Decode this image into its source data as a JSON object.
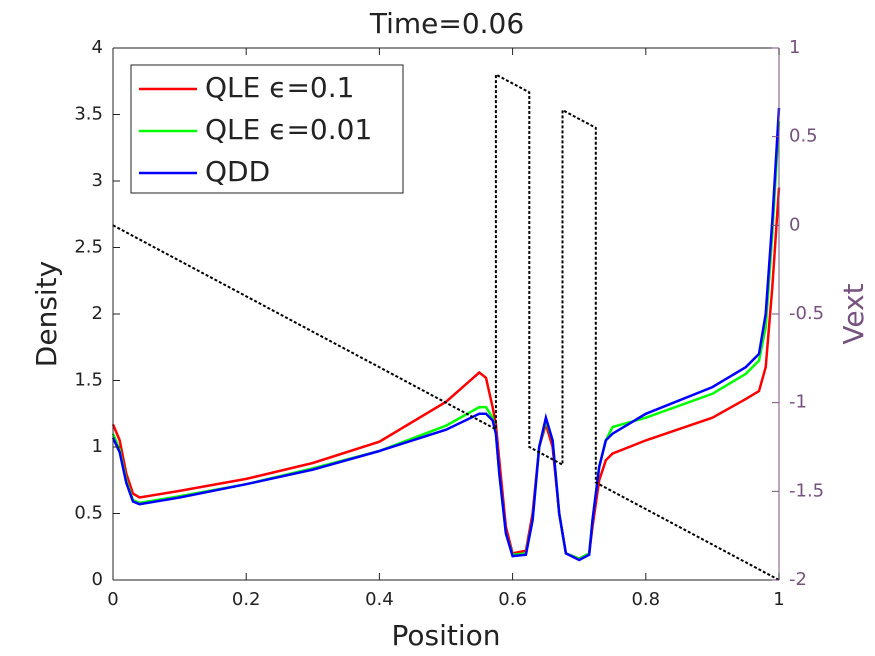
{
  "chart_data": {
    "type": "line",
    "title": "Time=0.06",
    "xlabel": "Position",
    "ylabel": "Density",
    "y2label": "Vext",
    "xlim": [
      0,
      1
    ],
    "xticks": [
      0,
      0.2,
      0.4,
      0.6,
      0.8,
      1
    ],
    "ylim": [
      0,
      4
    ],
    "yticks": [
      0,
      0.5,
      1,
      1.5,
      2,
      2.5,
      3,
      3.5,
      4
    ],
    "y2lim": [
      -2,
      1
    ],
    "y2ticks": [
      -2,
      -1.5,
      -1,
      -0.5,
      0,
      0.5,
      1
    ],
    "y2color": "#77517f",
    "legend": "northwest",
    "series": [
      {
        "name": "QLE ϵ=0.1",
        "color": "#ff0000",
        "x": [
          0,
          0.01,
          0.02,
          0.03,
          0.04,
          0.1,
          0.2,
          0.3,
          0.4,
          0.5,
          0.55,
          0.56,
          0.57,
          0.575,
          0.58,
          0.59,
          0.6,
          0.62,
          0.63,
          0.64,
          0.65,
          0.66,
          0.67,
          0.68,
          0.7,
          0.715,
          0.72,
          0.73,
          0.74,
          0.75,
          0.8,
          0.9,
          0.95,
          0.97,
          0.98,
          0.99,
          1
        ],
        "values": [
          1.17,
          1.05,
          0.8,
          0.65,
          0.62,
          0.67,
          0.76,
          0.88,
          1.04,
          1.34,
          1.56,
          1.52,
          1.3,
          1.17,
          0.9,
          0.4,
          0.2,
          0.22,
          0.5,
          1.0,
          1.17,
          1.0,
          0.5,
          0.2,
          0.16,
          0.2,
          0.4,
          0.75,
          0.9,
          0.95,
          1.05,
          1.22,
          1.36,
          1.42,
          1.6,
          2.2,
          2.95
        ]
      },
      {
        "name": "QLE ϵ=0.01",
        "color": "#00ff00",
        "x": [
          0,
          0.01,
          0.02,
          0.03,
          0.04,
          0.1,
          0.2,
          0.3,
          0.4,
          0.5,
          0.55,
          0.56,
          0.57,
          0.575,
          0.58,
          0.59,
          0.6,
          0.62,
          0.63,
          0.64,
          0.65,
          0.66,
          0.67,
          0.68,
          0.7,
          0.715,
          0.72,
          0.73,
          0.74,
          0.75,
          0.8,
          0.9,
          0.95,
          0.97,
          0.98,
          0.99,
          1
        ],
        "values": [
          1.1,
          0.98,
          0.75,
          0.6,
          0.58,
          0.63,
          0.72,
          0.84,
          0.97,
          1.16,
          1.3,
          1.3,
          1.22,
          1.1,
          0.8,
          0.35,
          0.19,
          0.2,
          0.45,
          1.0,
          1.2,
          1.05,
          0.5,
          0.2,
          0.16,
          0.2,
          0.45,
          0.85,
          1.05,
          1.15,
          1.22,
          1.4,
          1.55,
          1.65,
          1.9,
          2.6,
          3.45
        ]
      },
      {
        "name": "QDD",
        "color": "#0000ff",
        "x": [
          0,
          0.01,
          0.02,
          0.03,
          0.04,
          0.1,
          0.2,
          0.3,
          0.4,
          0.5,
          0.55,
          0.56,
          0.57,
          0.575,
          0.58,
          0.59,
          0.6,
          0.62,
          0.63,
          0.64,
          0.65,
          0.66,
          0.67,
          0.68,
          0.7,
          0.715,
          0.72,
          0.73,
          0.74,
          0.75,
          0.8,
          0.9,
          0.95,
          0.97,
          0.98,
          0.99,
          1
        ],
        "values": [
          1.07,
          0.96,
          0.73,
          0.59,
          0.57,
          0.62,
          0.72,
          0.83,
          0.97,
          1.13,
          1.25,
          1.25,
          1.2,
          1.1,
          0.8,
          0.35,
          0.18,
          0.19,
          0.45,
          1.0,
          1.22,
          1.05,
          0.5,
          0.2,
          0.15,
          0.19,
          0.45,
          0.85,
          1.05,
          1.1,
          1.25,
          1.45,
          1.6,
          1.7,
          2.0,
          2.7,
          3.55
        ]
      },
      {
        "axis": "y2",
        "color": "#000000",
        "dash": true,
        "x": [
          0,
          0.575,
          0.575,
          0.625,
          0.625,
          0.675,
          0.675,
          0.725,
          0.725,
          1
        ],
        "values": [
          0,
          -1.15,
          0.85,
          0.75,
          -1.25,
          -1.35,
          0.65,
          0.55,
          -1.45,
          -2
        ]
      }
    ]
  }
}
